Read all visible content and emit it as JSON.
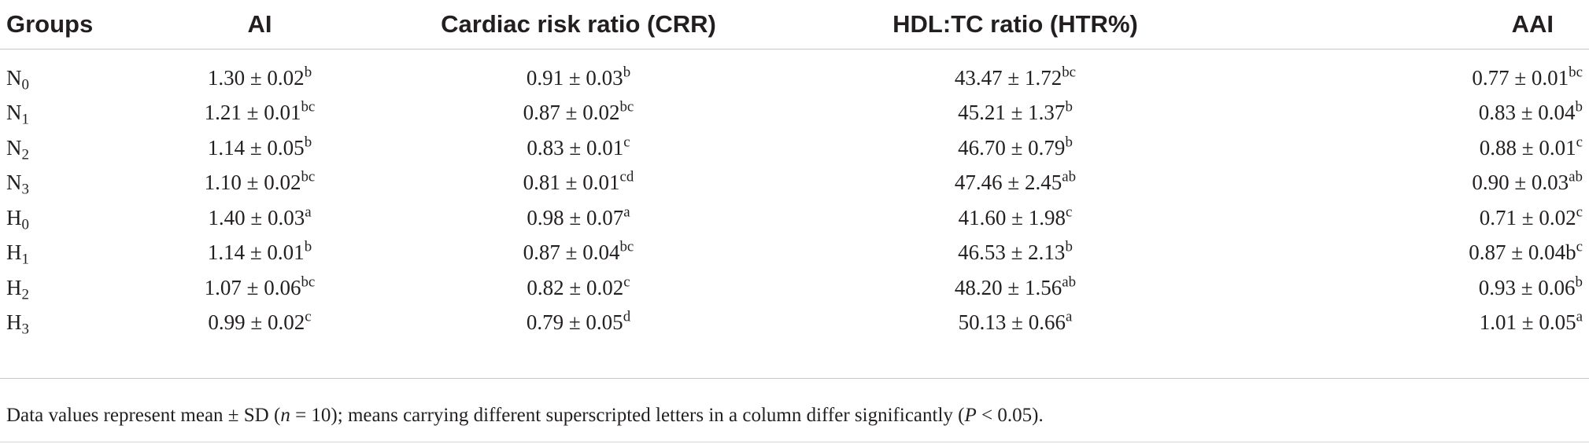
{
  "table": {
    "headers": [
      "Groups",
      "AI",
      "Cardiac risk ratio (CRR)",
      "HDL:TC ratio (HTR%)",
      "AAI"
    ],
    "rows": [
      {
        "group": "N",
        "sub": "0",
        "cells": [
          {
            "v": "1.30 ± 0.02",
            "s": "b"
          },
          {
            "v": "0.91 ± 0.03",
            "s": "b"
          },
          {
            "v": "43.47 ± 1.72",
            "s": "bc"
          },
          {
            "v": "0.77 ± 0.01",
            "s": "bc"
          }
        ]
      },
      {
        "group": "N",
        "sub": "1",
        "cells": [
          {
            "v": "1.21 ± 0.01",
            "s": "bc"
          },
          {
            "v": "0.87 ± 0.02",
            "s": "bc"
          },
          {
            "v": "45.21 ± 1.37",
            "s": "b"
          },
          {
            "v": "0.83 ± 0.04",
            "s": "b"
          }
        ]
      },
      {
        "group": "N",
        "sub": "2",
        "cells": [
          {
            "v": "1.14 ± 0.05",
            "s": "b"
          },
          {
            "v": "0.83 ± 0.01",
            "s": "c"
          },
          {
            "v": "46.70 ± 0.79",
            "s": "b"
          },
          {
            "v": "0.88 ± 0.01",
            "s": "c"
          }
        ]
      },
      {
        "group": "N",
        "sub": "3",
        "cells": [
          {
            "v": "1.10 ± 0.02",
            "s": "bc"
          },
          {
            "v": "0.81 ± 0.01",
            "s": "cd"
          },
          {
            "v": "47.46 ± 2.45",
            "s": "ab"
          },
          {
            "v": "0.90 ± 0.03",
            "s": "ab"
          }
        ]
      },
      {
        "group": "H",
        "sub": "0",
        "cells": [
          {
            "v": "1.40 ± 0.03",
            "s": "a"
          },
          {
            "v": "0.98 ± 0.07",
            "s": "a"
          },
          {
            "v": "41.60 ± 1.98",
            "s": "c"
          },
          {
            "v": "0.71 ± 0.02",
            "s": "c"
          }
        ]
      },
      {
        "group": "H",
        "sub": "1",
        "cells": [
          {
            "v": "1.14 ± 0.01",
            "s": "b"
          },
          {
            "v": "0.87 ± 0.04",
            "s": "bc"
          },
          {
            "v": "46.53 ± 2.13",
            "s": "b"
          },
          {
            "v": "0.87 ± 0.04b",
            "s": "c"
          }
        ]
      },
      {
        "group": "H",
        "sub": "2",
        "cells": [
          {
            "v": "1.07 ± 0.06",
            "s": "bc"
          },
          {
            "v": "0.82 ± 0.02",
            "s": "c"
          },
          {
            "v": "48.20 ± 1.56",
            "s": "ab"
          },
          {
            "v": "0.93 ± 0.06",
            "s": "b"
          }
        ]
      },
      {
        "group": "H",
        "sub": "3",
        "cells": [
          {
            "v": "0.99 ± 0.02",
            "s": "c"
          },
          {
            "v": "0.79 ± 0.05",
            "s": "d"
          },
          {
            "v": "50.13 ± 0.66",
            "s": "a"
          },
          {
            "v": "1.01 ± 0.05",
            "s": "a"
          }
        ]
      }
    ]
  },
  "footnote": {
    "text1": "Data values represent mean ± SD (",
    "n_italic": "n",
    "text2": " = 10); means carrying different superscripted letters in a column differ significantly (",
    "p_italic": "P",
    "text3": " < 0.05)."
  }
}
